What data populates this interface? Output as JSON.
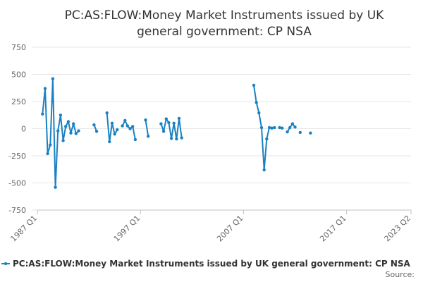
{
  "chart_data": {
    "type": "line",
    "title_line1": "PC:AS:FLOW:Money Market Instruments issued by UK",
    "title_line2": "general government: CP NSA",
    "y_ticks": [
      750,
      500,
      250,
      0,
      -250,
      -500,
      -750
    ],
    "ylim": [
      -750,
      750
    ],
    "x_ticks": [
      "1987 Q1",
      "1997 Q1",
      "2007 Q1",
      "2017 Q1",
      "2023 Q2"
    ],
    "grid": true,
    "legend_position": "bottom",
    "series": [
      {
        "name": "PC:AS:FLOW:Money Market Instruments issued by UK general government: CP NSA",
        "color": "#1a81c2",
        "values": [
          [
            "1987 Q3",
            135
          ],
          [
            "1987 Q4",
            370
          ],
          [
            "1988 Q1",
            -230
          ],
          [
            "1988 Q2",
            -150
          ],
          [
            "1988 Q3",
            460
          ],
          [
            "1988 Q4",
            -540
          ],
          [
            "1989 Q1",
            -20
          ],
          [
            "1989 Q2",
            125
          ],
          [
            "1989 Q3",
            -110
          ],
          [
            "1989 Q4",
            20
          ],
          [
            "1990 Q1",
            65
          ],
          [
            "1990 Q2",
            -40
          ],
          [
            "1990 Q3",
            45
          ],
          [
            "1990 Q4",
            -45
          ],
          [
            "1991 Q1",
            -20
          ],
          [
            "1992 Q3",
            35
          ],
          [
            "1992 Q4",
            -25
          ],
          [
            "1993 Q4",
            145
          ],
          [
            "1994 Q1",
            -120
          ],
          [
            "1994 Q2",
            50
          ],
          [
            "1994 Q3",
            -50
          ],
          [
            "1994 Q4",
            -10
          ],
          [
            "1995 Q2",
            25
          ],
          [
            "1995 Q3",
            75
          ],
          [
            "1995 Q4",
            25
          ],
          [
            "1996 Q1",
            0
          ],
          [
            "1996 Q2",
            20
          ],
          [
            "1996 Q3",
            -100
          ],
          [
            "1997 Q3",
            80
          ],
          [
            "1997 Q4",
            -70
          ],
          [
            "1999 Q1",
            45
          ],
          [
            "1999 Q2",
            -25
          ],
          [
            "1999 Q3",
            90
          ],
          [
            "1999 Q4",
            55
          ],
          [
            "2000 Q1",
            -90
          ],
          [
            "2000 Q2",
            50
          ],
          [
            "2000 Q3",
            -95
          ],
          [
            "2000 Q4",
            95
          ],
          [
            "2001 Q1",
            -85
          ],
          [
            "2008 Q1",
            400
          ],
          [
            "2008 Q2",
            240
          ],
          [
            "2008 Q3",
            145
          ],
          [
            "2008 Q4",
            10
          ],
          [
            "2009 Q1",
            -380
          ],
          [
            "2009 Q2",
            -95
          ],
          [
            "2009 Q3",
            10
          ],
          [
            "2009 Q4",
            5
          ],
          [
            "2010 Q1",
            10
          ],
          [
            "2010 Q3",
            10
          ],
          [
            "2010 Q4",
            5
          ],
          [
            "2011 Q2",
            -30
          ],
          [
            "2011 Q3",
            10
          ],
          [
            "2011 Q4",
            45
          ],
          [
            "2012 Q1",
            15
          ],
          [
            "2012 Q3",
            -35
          ],
          [
            "2013 Q3",
            -40
          ]
        ]
      }
    ],
    "source_label": "Source:"
  }
}
